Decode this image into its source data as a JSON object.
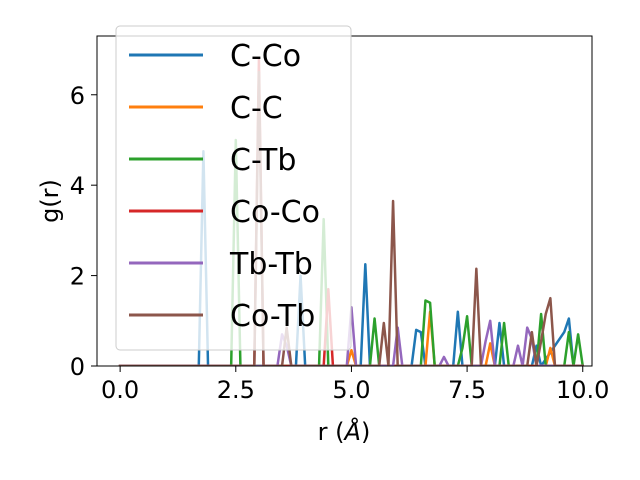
{
  "chart_data": {
    "type": "line",
    "title": "",
    "xlabel": "r (",
    "xlabel_unit": "Å",
    "xlabel_close": ")",
    "ylabel": "g(r)",
    "xlim": [
      -0.5,
      10.2
    ],
    "ylim": [
      0,
      7.3
    ],
    "xticks": [
      0.0,
      2.5,
      5.0,
      7.5,
      10.0
    ],
    "xtick_labels": [
      "0.0",
      "2.5",
      "5.0",
      "7.5",
      "10.0"
    ],
    "yticks": [
      0,
      2,
      4,
      6
    ],
    "ytick_labels": [
      "0",
      "2",
      "4",
      "6"
    ],
    "grid": false,
    "legend_position": "upper-left",
    "series": [
      {
        "name": "C-Co",
        "color": "#1f77b4",
        "x": [
          0,
          1.7,
          1.8,
          1.9,
          2.0,
          3.8,
          3.9,
          4.0,
          4.1,
          5.2,
          5.3,
          5.4,
          6.3,
          6.4,
          6.5,
          6.6,
          7.2,
          7.3,
          7.4,
          8.1,
          8.2,
          8.3,
          8.9,
          9.0,
          9.1,
          9.6,
          9.7,
          9.8,
          9.9
        ],
        "y": [
          0,
          0,
          4.75,
          0,
          0,
          0,
          2.0,
          0,
          0,
          0,
          2.25,
          0,
          0,
          0.8,
          0.75,
          0,
          0,
          1.2,
          0,
          0,
          0.95,
          0,
          0,
          0.45,
          0,
          0.75,
          1.05,
          0,
          0
        ]
      },
      {
        "name": "C-C",
        "color": "#ff7f0e",
        "x": [
          0,
          4.9,
          5.0,
          5.1,
          6.6,
          6.7,
          6.8,
          7.9,
          8.0,
          8.1,
          9.2,
          9.3,
          9.4,
          9.9
        ],
        "y": [
          0,
          0,
          0.35,
          0,
          0,
          1.2,
          0,
          0,
          0.5,
          0,
          0,
          0.4,
          0,
          0
        ]
      },
      {
        "name": "C-Tb",
        "color": "#2ca02c",
        "x": [
          0,
          2.4,
          2.5,
          2.6,
          4.3,
          4.4,
          4.5,
          5.4,
          5.5,
          5.6,
          6.5,
          6.6,
          6.7,
          6.8,
          7.3,
          7.4,
          7.5,
          7.6,
          7.7,
          8.2,
          8.3,
          8.4,
          9.0,
          9.1,
          9.2,
          9.6,
          9.7,
          9.8,
          9.9,
          10.0
        ],
        "y": [
          0,
          0,
          5.0,
          0,
          0,
          3.25,
          0,
          0,
          1.05,
          0,
          0,
          1.45,
          1.4,
          0,
          0,
          0.4,
          1.1,
          0,
          0,
          0,
          0.95,
          0,
          0,
          1.15,
          0,
          0,
          0.75,
          0,
          0.7,
          0
        ]
      },
      {
        "name": "Co-Co",
        "color": "#d62728",
        "x": [
          0,
          2.9,
          3.0,
          3.1,
          4.4,
          4.5,
          4.6,
          10.0
        ],
        "y": [
          0,
          0,
          6.8,
          0,
          0,
          1.7,
          0,
          0
        ]
      },
      {
        "name": "Tb-Tb",
        "color": "#9467bd",
        "x": [
          0,
          3.4,
          3.5,
          3.6,
          3.7,
          4.9,
          5.0,
          5.1,
          5.9,
          6.0,
          6.1,
          6.9,
          7.0,
          7.1,
          7.8,
          7.9,
          8.0,
          8.1,
          8.5,
          8.6,
          8.7,
          8.8,
          8.9,
          9.0,
          10.0
        ],
        "y": [
          0,
          0,
          0.7,
          0.45,
          0,
          0,
          1.3,
          0,
          0,
          0.85,
          0,
          0,
          0.2,
          0,
          0,
          0.55,
          1.0,
          0,
          0,
          0.45,
          0,
          0.85,
          0.6,
          0,
          0
        ]
      },
      {
        "name": "Co-Tb",
        "color": "#8c564b",
        "x": [
          0,
          2.9,
          3.0,
          3.1,
          3.5,
          3.6,
          3.7,
          5.5,
          5.6,
          5.7,
          5.8,
          5.9,
          6.0,
          6.1,
          7.6,
          7.7,
          7.8,
          8.8,
          8.9,
          9.0,
          9.1,
          9.2,
          9.3,
          9.4,
          10.0
        ],
        "y": [
          0,
          0,
          6.5,
          0,
          0,
          0.85,
          0,
          0,
          0,
          0.95,
          0,
          3.65,
          0,
          0,
          0,
          2.15,
          0,
          0,
          0.75,
          0,
          0.55,
          1.15,
          1.5,
          0,
          0
        ]
      }
    ]
  }
}
